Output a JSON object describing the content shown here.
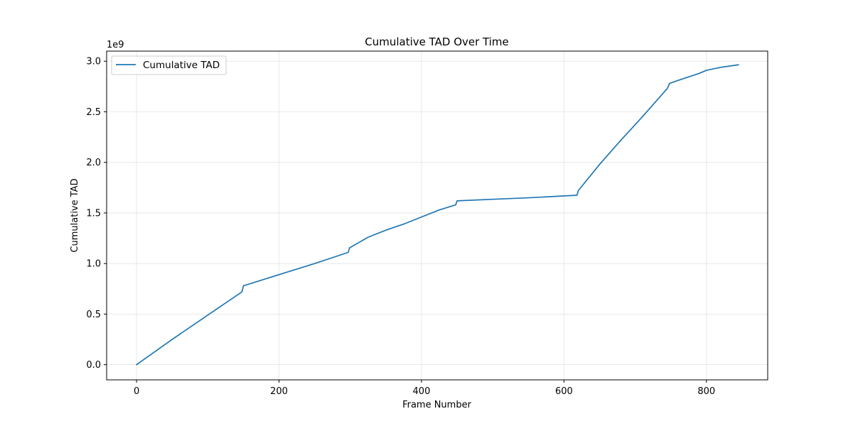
{
  "chart_data": {
    "type": "line",
    "title": "Cumulative TAD Over Time",
    "xlabel": "Frame Number",
    "ylabel": "Cumulative TAD",
    "y_scale_label": "1e9",
    "xlim": [
      -42,
      886
    ],
    "ylim": [
      -0.15,
      3.1
    ],
    "xticks": [
      0,
      200,
      400,
      600,
      800
    ],
    "xtick_labels": [
      "0",
      "200",
      "400",
      "600",
      "800"
    ],
    "yticks": [
      0.0,
      0.5,
      1.0,
      1.5,
      2.0,
      2.5,
      3.0
    ],
    "ytick_labels": [
      "0.0",
      "0.5",
      "1.0",
      "1.5",
      "2.0",
      "2.5",
      "3.0"
    ],
    "grid": true,
    "legend_position": "top-left",
    "series": [
      {
        "name": "Cumulative TAD",
        "color": "#1f77b4",
        "x": [
          0,
          50,
          100,
          148,
          149,
          150,
          200,
          250,
          297,
          298,
          299,
          325,
          350,
          375,
          400,
          425,
          448,
          449,
          450,
          500,
          550,
          618,
          619,
          620,
          650,
          680,
          710,
          745,
          747,
          748,
          760,
          790,
          800,
          820,
          845
        ],
        "y": [
          0.0,
          0.25,
          0.49,
          0.72,
          0.75,
          0.78,
          0.89,
          1.0,
          1.11,
          1.13,
          1.155,
          1.26,
          1.33,
          1.39,
          1.46,
          1.53,
          1.58,
          1.6,
          1.62,
          1.635,
          1.65,
          1.675,
          1.69,
          1.72,
          1.98,
          2.22,
          2.45,
          2.73,
          2.76,
          2.78,
          2.81,
          2.88,
          2.91,
          2.94,
          2.965
        ]
      }
    ]
  }
}
